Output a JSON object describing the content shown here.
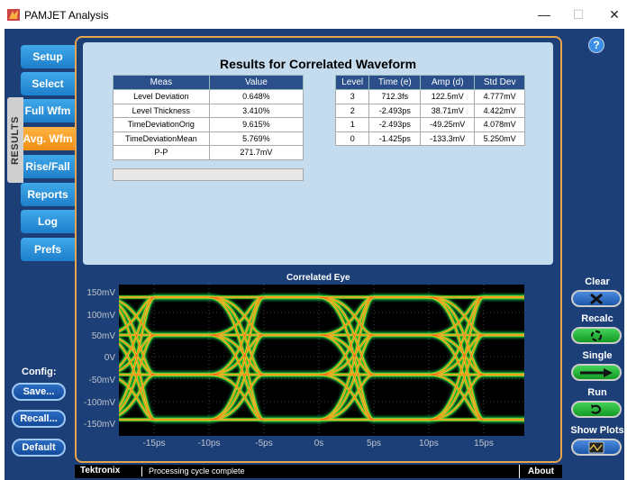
{
  "window": {
    "title": "PAMJET Analysis",
    "minimize": "—",
    "maximize": "☐",
    "close": "✕"
  },
  "tabs": [
    {
      "label": "Setup"
    },
    {
      "label": "Select"
    },
    {
      "label": "Full Wfm"
    },
    {
      "label": "Avg. Wfm"
    },
    {
      "label": "Rise/Fall"
    },
    {
      "label": "Reports"
    },
    {
      "label": "Log"
    },
    {
      "label": "Prefs"
    }
  ],
  "results_tab_label": "RESULTS",
  "results": {
    "title": "Results for Correlated Waveform",
    "meas_table": {
      "headers": [
        "Meas",
        "Value"
      ],
      "rows": [
        [
          "Level Deviation",
          "0.648%"
        ],
        [
          "Level Thickness",
          "3.410%"
        ],
        [
          "TimeDeviationOrig",
          "9.615%"
        ],
        [
          "TimeDeviationMean",
          "5.769%"
        ],
        [
          "P-P",
          "271.7mV"
        ]
      ]
    },
    "level_table": {
      "headers": [
        "Level",
        "Time (e)",
        "Amp (d)",
        "Std Dev"
      ],
      "rows": [
        [
          "3",
          "712.3fs",
          "122.5mV",
          "4.777mV"
        ],
        [
          "2",
          "-2.493ps",
          "38.71mV",
          "4.422mV"
        ],
        [
          "1",
          "-2.493ps",
          "-49.25mV",
          "4.078mV"
        ],
        [
          "0",
          "-1.425ps",
          "-133.3mV",
          "5.250mV"
        ]
      ]
    }
  },
  "eye": {
    "title": "Correlated Eye",
    "y_ticks": [
      "150mV",
      "100mV",
      "50mV",
      "0V",
      "-50mV",
      "-100mV",
      "-150mV"
    ],
    "x_ticks": [
      "-15ps",
      "-10ps",
      "-5ps",
      "0s",
      "5ps",
      "10ps",
      "15ps"
    ]
  },
  "config": {
    "label": "Config:",
    "buttons": [
      "Save...",
      "Recall...",
      "Default"
    ]
  },
  "controls": [
    {
      "label": "Clear",
      "icon": "x-icon",
      "color": "#2b6cc4"
    },
    {
      "label": "Recalc",
      "icon": "recalc-icon",
      "color": "#1fae2f"
    },
    {
      "label": "Single",
      "icon": "arrow-right-icon",
      "color": "#1fae2f"
    },
    {
      "label": "Run",
      "icon": "loop-icon",
      "color": "#1fae2f"
    },
    {
      "label": "Show Plots",
      "icon": "plot-icon",
      "color": "#2b6cc4"
    }
  ],
  "help_icon": "?",
  "status": {
    "brand": "Tektronix",
    "message": "Processing cycle complete",
    "about": "About"
  },
  "colors": {
    "frame": "#1c3f78",
    "tab": "#2f93dd",
    "tab_active": "#f5a02a",
    "panel_border": "#e8a54b",
    "results_bg": "#c5dcef"
  }
}
